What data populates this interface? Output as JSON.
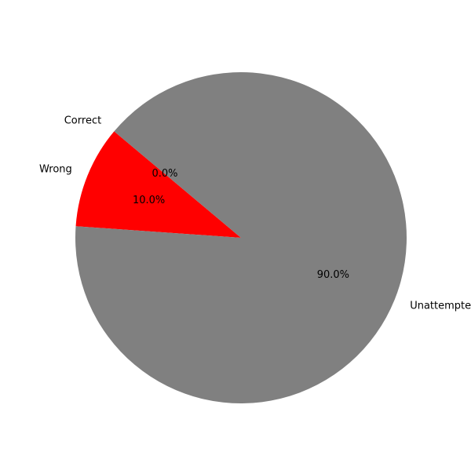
{
  "chart_data": {
    "type": "pie",
    "title": "",
    "slices": [
      {
        "label": "Correct",
        "value": 0.0,
        "percent_label": "0.0%",
        "color": "#1f77b4"
      },
      {
        "label": "Wrong",
        "value": 10.0,
        "percent_label": "10.0%",
        "color": "#ff0000"
      },
      {
        "label": "Unattempted",
        "value": 90.0,
        "percent_label": "90.0%",
        "color": "#808080"
      }
    ],
    "start_angle_deg": 140,
    "direction": "counterclockwise"
  }
}
